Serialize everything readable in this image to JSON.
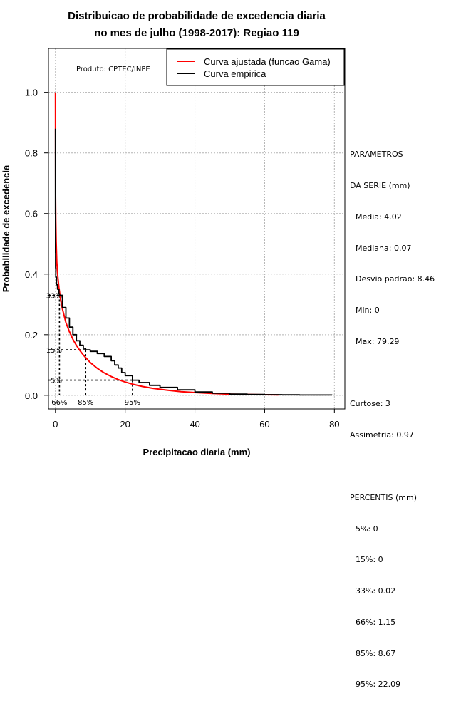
{
  "chart_data": {
    "type": "line",
    "title_line1": "Distribuicao de probabilidade de excedencia diaria",
    "title_line2": "no mes de julho (1998-2017): Regiao 119",
    "xlabel": "Precipitacao diaria (mm)",
    "ylabel": "Probabilidade de excedencia",
    "xlim": [
      -2,
      83
    ],
    "ylim": [
      -0.045,
      1.145
    ],
    "x_ticks": [
      0,
      20,
      40,
      60,
      80
    ],
    "x_tick_labels": [
      "0",
      "20",
      "40",
      "60",
      "80"
    ],
    "y_ticks": [
      0.0,
      0.2,
      0.4,
      0.6,
      0.8,
      1.0
    ],
    "y_tick_labels": [
      "0.0",
      "0.2",
      "0.4",
      "0.6",
      "0.8",
      "1.0"
    ],
    "grid": true,
    "product_label": "Produto: CPTEC/INPE",
    "legend": [
      {
        "label": "Curva ajustada (funcao Gama)",
        "color": "#ff0000"
      },
      {
        "label": "Curva empirica",
        "color": "#000000"
      }
    ],
    "series": [
      {
        "name": "Curva ajustada (funcao Gama)",
        "color": "#ff0000",
        "x": [
          0,
          0.05,
          0.1,
          0.2,
          0.4,
          0.7,
          1,
          1.5,
          2,
          3,
          4,
          5,
          6,
          7,
          8,
          10,
          12,
          14,
          16,
          18,
          20,
          22,
          25,
          28,
          32,
          36,
          40,
          45,
          50,
          55,
          60,
          64
        ],
        "y": [
          1.0,
          0.66,
          0.58,
          0.51,
          0.44,
          0.39,
          0.355,
          0.315,
          0.285,
          0.24,
          0.21,
          0.185,
          0.165,
          0.148,
          0.133,
          0.108,
          0.089,
          0.074,
          0.062,
          0.052,
          0.044,
          0.037,
          0.029,
          0.023,
          0.017,
          0.012,
          0.009,
          0.006,
          0.004,
          0.003,
          0.002,
          0.0015
        ]
      },
      {
        "name": "Curva empirica",
        "color": "#000000",
        "x": [
          0,
          0,
          0.02,
          0.05,
          0.1,
          0.3,
          0.6,
          1,
          1.15,
          2,
          3,
          4,
          5,
          6,
          7,
          8,
          8.67,
          10,
          12,
          14,
          16,
          17,
          18,
          19,
          20,
          22.09,
          24,
          27,
          30,
          35,
          40,
          45,
          50,
          55,
          60,
          65,
          70,
          75,
          79.29
        ],
        "y": [
          0.88,
          0.6,
          0.47,
          0.42,
          0.39,
          0.365,
          0.35,
          0.335,
          0.33,
          0.29,
          0.255,
          0.225,
          0.2,
          0.18,
          0.165,
          0.155,
          0.15,
          0.145,
          0.138,
          0.128,
          0.114,
          0.1,
          0.09,
          0.075,
          0.065,
          0.05,
          0.042,
          0.033,
          0.026,
          0.018,
          0.011,
          0.007,
          0.004,
          0.003,
          0.002,
          0.0015,
          0.001,
          0.001,
          0.0005
        ]
      }
    ],
    "percentile_markers": [
      {
        "label_y": "33%",
        "label_x": "66%",
        "x": 1.15,
        "y": 0.33
      },
      {
        "label_y": "15%",
        "label_x": "85%",
        "x": 8.67,
        "y": 0.15
      },
      {
        "label_y": "5%",
        "label_x": "95%",
        "x": 22.09,
        "y": 0.05
      }
    ]
  },
  "stats": {
    "header1": "PARAMETROS",
    "header2": "DA SERIE (mm)",
    "media": "Media: 4.02",
    "mediana": "Mediana: 0.07",
    "desvio": "Desvio padrao: 8.46",
    "min": "Min: 0",
    "max": "Max: 79.29",
    "curtose": "Curtose: 3",
    "assimetria": "Assimetria: 0.97",
    "percentis_header": "PERCENTIS (mm)",
    "p5": "5%: 0",
    "p15": "15%: 0",
    "p33": "33%: 0.02",
    "p66": "66%: 1.15",
    "p85": "85%: 8.67",
    "p95": "95%: 22.09"
  }
}
